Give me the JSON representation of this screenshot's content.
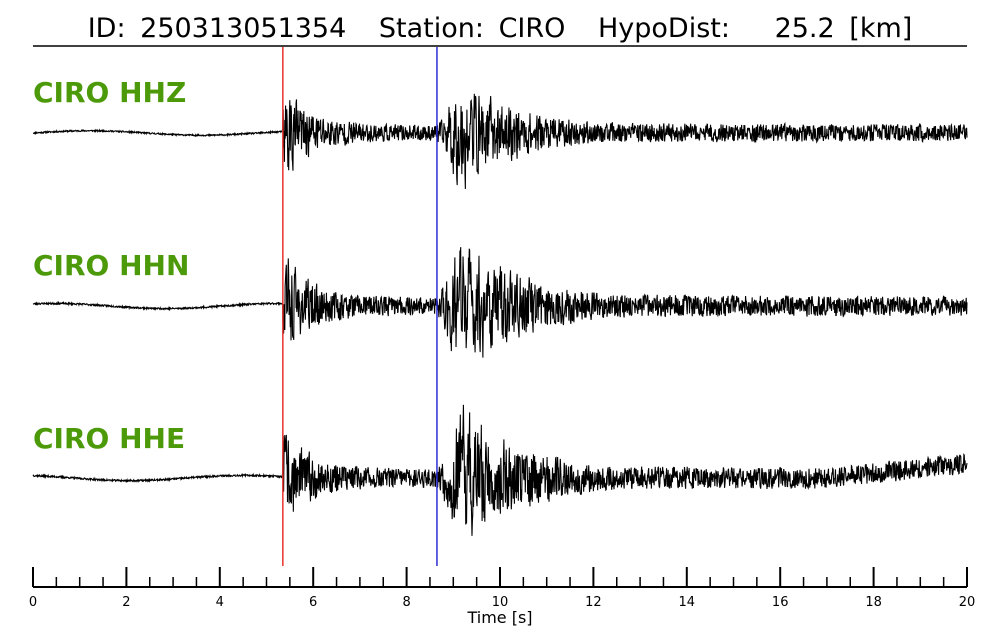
{
  "header": {
    "id_label": "ID:",
    "id_value": "250313051354",
    "station_label": "Station:",
    "station_value": "CIRO",
    "dist_label": "HypoDist:",
    "dist_value": "25.2",
    "dist_unit": "[km]"
  },
  "colors": {
    "label": "#4c9a0a",
    "trace": "#000000",
    "p_pick": "#e8322b",
    "s_pick": "#2b2bd6"
  },
  "chart_data": {
    "type": "line",
    "xlabel": "Time [s]",
    "xlim": [
      0,
      20
    ],
    "major_ticks": [
      0,
      2,
      4,
      6,
      8,
      10,
      12,
      14,
      16,
      18,
      20
    ],
    "minor_tick_step": 0.5,
    "picks": [
      {
        "phase": "P",
        "time": 5.35,
        "color": "#e8322b"
      },
      {
        "phase": "S",
        "time": 8.65,
        "color": "#2b2bd6"
      }
    ],
    "series": [
      {
        "name": "CIRO HHZ",
        "noise_before": 0.02,
        "p_amp": 0.85,
        "s_amp": 0.9,
        "coda": 0.35,
        "seed": 11
      },
      {
        "name": "CIRO HHN",
        "noise_before": 0.02,
        "p_amp": 0.75,
        "s_amp": 1.0,
        "coda": 0.45,
        "seed": 23
      },
      {
        "name": "CIRO HHE",
        "noise_before": 0.02,
        "p_amp": 0.7,
        "s_amp": 1.0,
        "coda": 0.45,
        "seed": 37
      }
    ]
  }
}
